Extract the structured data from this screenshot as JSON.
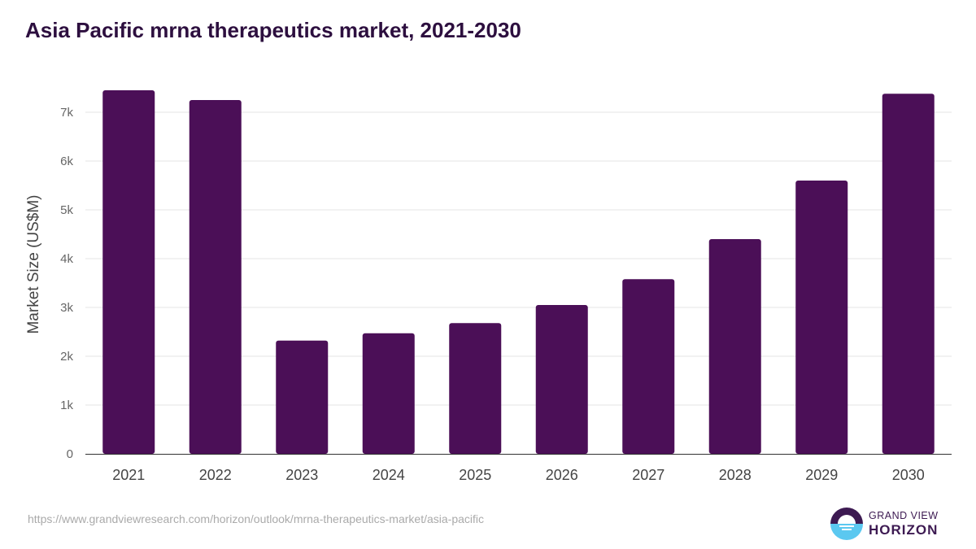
{
  "chart_data": {
    "type": "bar",
    "title": "Asia Pacific mrna therapeutics market, 2021-2030",
    "xlabel": "",
    "ylabel": "Market Size (US$M)",
    "categories": [
      "2021",
      "2022",
      "2023",
      "2024",
      "2025",
      "2026",
      "2027",
      "2028",
      "2029",
      "2030"
    ],
    "values": [
      7450,
      7250,
      2320,
      2470,
      2680,
      3050,
      3580,
      4400,
      5600,
      7380
    ],
    "ylim": [
      0,
      7500
    ],
    "yticks": [
      0,
      1000,
      2000,
      3000,
      4000,
      5000,
      6000,
      7000
    ],
    "ytick_labels": [
      "0",
      "1k",
      "2k",
      "3k",
      "4k",
      "5k",
      "6k",
      "7k"
    ],
    "grid": true,
    "bar_color": "#4b0f57"
  },
  "footer": {
    "url": "https://www.grandviewresearch.com/horizon/outlook/mrna-therapeutics-market/asia-pacific",
    "logo_line1": "GRAND VIEW",
    "logo_line2": "HORIZON"
  }
}
